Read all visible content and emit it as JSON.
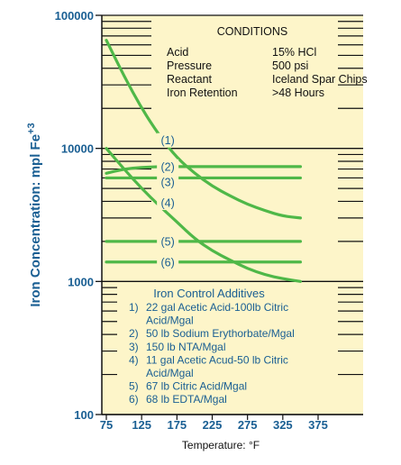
{
  "chart_data": {
    "type": "line",
    "title": "",
    "xlabel": "Temperature: °F",
    "ylabel": "Iron Concentration: mpl Fe",
    "ylabel_superscript": "+3",
    "xlim": [
      75,
      375
    ],
    "ylim": [
      100,
      100000
    ],
    "y_scale": "log",
    "x_ticks": [
      "75",
      "125",
      "175",
      "225",
      "275",
      "325",
      "375"
    ],
    "y_ticks": [
      "100",
      "1000",
      "10000",
      "100000"
    ],
    "background_color": "#fdf5c9",
    "line_color": "#4fb848",
    "text_color": "#1a5f93",
    "conditions": {
      "title": "CONDITIONS",
      "rows": [
        {
          "label": "Acid",
          "value": "15% HCl"
        },
        {
          "label": "Pressure",
          "value": "500 psi"
        },
        {
          "label": "Reactant",
          "value": "Iceland Spar Chips"
        },
        {
          "label": "Iron Retention",
          "value": ">48 Hours"
        }
      ]
    },
    "additives": {
      "title": "Iron Control Additives",
      "lines": [
        {
          "num": "1)",
          "text": "22 gal Acetic Acid-100lb Citric"
        },
        {
          "num": "",
          "text": "Acid/Mgal"
        },
        {
          "num": "2)",
          "text": "50 lb Sodium Erythorbate/Mgal"
        },
        {
          "num": "3)",
          "text": "150 lb NTA/Mgal"
        },
        {
          "num": "4)",
          "text": "11 gal Acetic Acud-50 lb Citric"
        },
        {
          "num": "",
          "text": "Acid/Mgal"
        },
        {
          "num": "5)",
          "text": "67 lb Citric Acid/Mgal"
        },
        {
          "num": "6)",
          "text": "68 lb EDTA/Mgal"
        }
      ]
    },
    "series": [
      {
        "name": "(1)",
        "x": [
          75,
          100,
          125,
          150,
          175,
          200,
          225,
          250,
          275,
          300,
          325,
          350
        ],
        "y": [
          65000,
          35000,
          20000,
          12500,
          8500,
          6500,
          5200,
          4400,
          3800,
          3400,
          3100,
          3000
        ]
      },
      {
        "name": "(2)",
        "x": [
          75,
          100,
          125,
          150,
          175,
          200,
          250,
          300,
          350
        ],
        "y": [
          6500,
          7000,
          7200,
          7300,
          7300,
          7300,
          7300,
          7300,
          7300
        ]
      },
      {
        "name": "(3)",
        "x": [
          75,
          100,
          125,
          150,
          175,
          200,
          250,
          300,
          350
        ],
        "y": [
          6000,
          6000,
          6000,
          6000,
          6000,
          6000,
          6000,
          6000,
          6000
        ]
      },
      {
        "name": "(4)",
        "x": [
          75,
          100,
          125,
          150,
          175,
          200,
          225,
          250,
          275,
          300,
          325,
          350
        ],
        "y": [
          10000,
          7000,
          5000,
          3700,
          2800,
          2100,
          1700,
          1450,
          1250,
          1120,
          1050,
          1000
        ]
      },
      {
        "name": "(5)",
        "x": [
          75,
          125,
          175,
          225,
          275,
          350
        ],
        "y": [
          2000,
          2000,
          2000,
          2000,
          2000,
          2000
        ]
      },
      {
        "name": "(6)",
        "x": [
          75,
          125,
          175,
          225,
          275,
          350
        ],
        "y": [
          1400,
          1400,
          1400,
          1400,
          1400,
          1400
        ]
      }
    ],
    "label_points": [
      {
        "name": "(1)",
        "x": 162,
        "y": 11500
      },
      {
        "name": "(2)",
        "x": 162,
        "y": 7300
      },
      {
        "name": "(3)",
        "x": 162,
        "y": 5600
      },
      {
        "name": "(4)",
        "x": 162,
        "y": 3900
      },
      {
        "name": "(5)",
        "x": 162,
        "y": 2000
      },
      {
        "name": "(6)",
        "x": 162,
        "y": 1400
      }
    ]
  }
}
